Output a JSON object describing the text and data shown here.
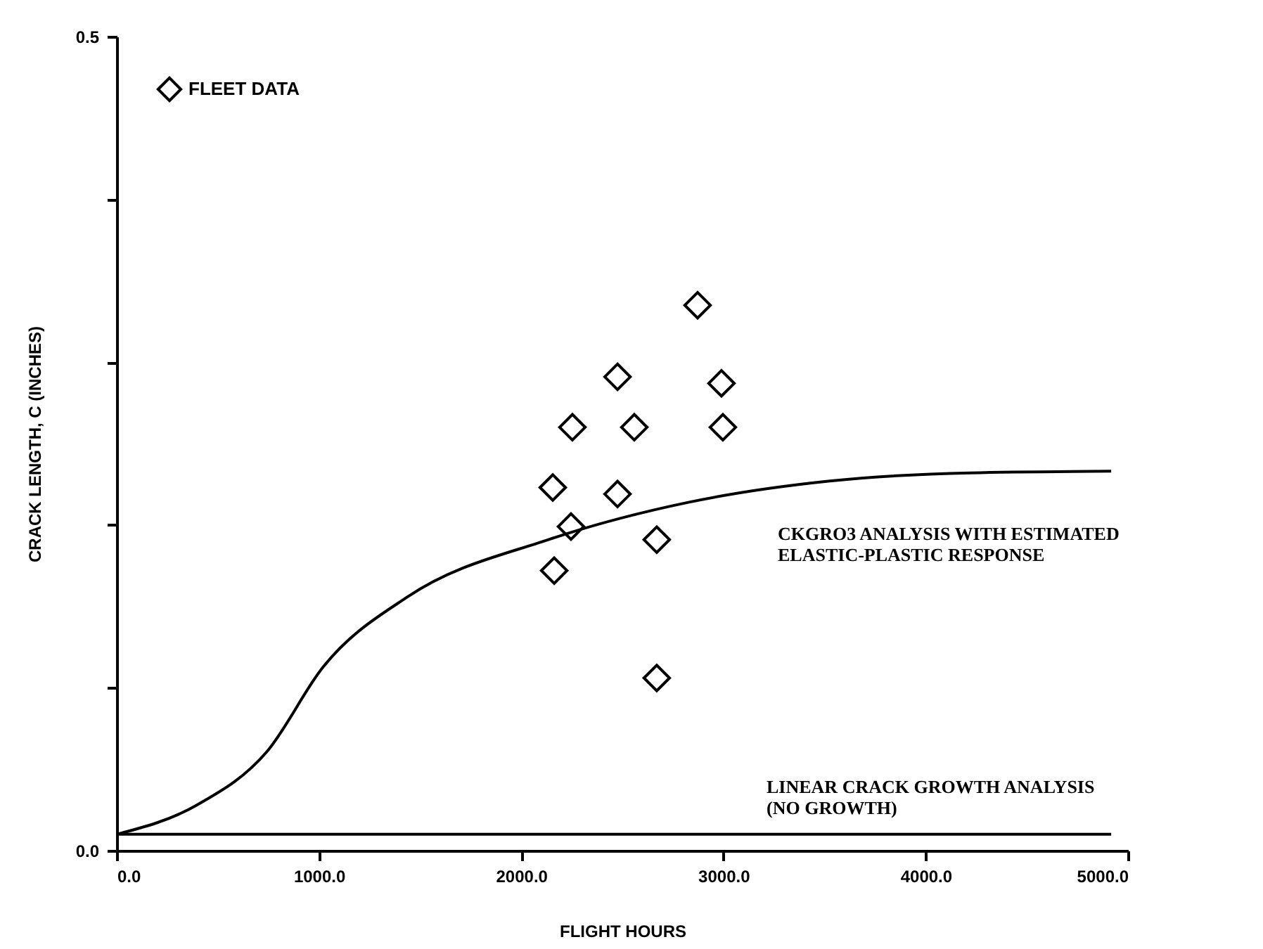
{
  "chart_data": {
    "type": "scatter",
    "xlabel": "FLIGHT HOURS",
    "ylabel": "CRACK LENGTH, C (INCHES)",
    "xlim": [
      0,
      5000
    ],
    "ylim": [
      0,
      0.5
    ],
    "xticks": [
      {
        "value": 0,
        "label": "0.0"
      },
      {
        "value": 1000,
        "label": "1000.0"
      },
      {
        "value": 2000,
        "label": "2000.0"
      },
      {
        "value": 3000,
        "label": "3000.0"
      },
      {
        "value": 4000,
        "label": "4000.0"
      },
      {
        "value": 5000,
        "label": "5000.0"
      }
    ],
    "yticks": [
      {
        "value": 0,
        "label": "0.0"
      },
      {
        "value": 0.1,
        "label": null
      },
      {
        "value": 0.2,
        "label": null
      },
      {
        "value": 0.3,
        "label": null
      },
      {
        "value": 0.4,
        "label": null
      },
      {
        "value": 0.5,
        "label": "0.5"
      }
    ],
    "grid": false,
    "legend": "top left",
    "series": [
      {
        "name": "FLEET DATA",
        "marker": "diamond",
        "color": "#000000",
        "x": [
          2156,
          2253,
          2476,
          2559,
          2872,
          2990,
          2997,
          2476,
          2246,
          2670,
          2163,
          2670
        ],
        "values": [
          0.223,
          0.26,
          0.291,
          0.26,
          0.335,
          0.287,
          0.26,
          0.219,
          0.199,
          0.191,
          0.172,
          0.106
        ]
      },
      {
        "type": "line",
        "color": "#000000",
        "x": [
          0,
          396,
          744,
          1022,
          1440,
          2135,
          2830,
          3526,
          4221,
          4917
        ],
        "values": [
          0.01,
          0.028,
          0.061,
          0.113,
          0.156,
          0.191,
          0.214,
          0.227,
          0.232,
          0.233
        ]
      },
      {
        "type": "line",
        "color": "#000000",
        "x": [
          0,
          4917
        ],
        "values": [
          0.01,
          0.01
        ]
      }
    ],
    "annotations": [
      "CKGRO3 ANALYSIS WITH ESTIMATED\nELASTIC-PLASTIC RESPONSE",
      "LINEAR CRACK GROWTH ANALYSIS\n(NO GROWTH)"
    ]
  }
}
